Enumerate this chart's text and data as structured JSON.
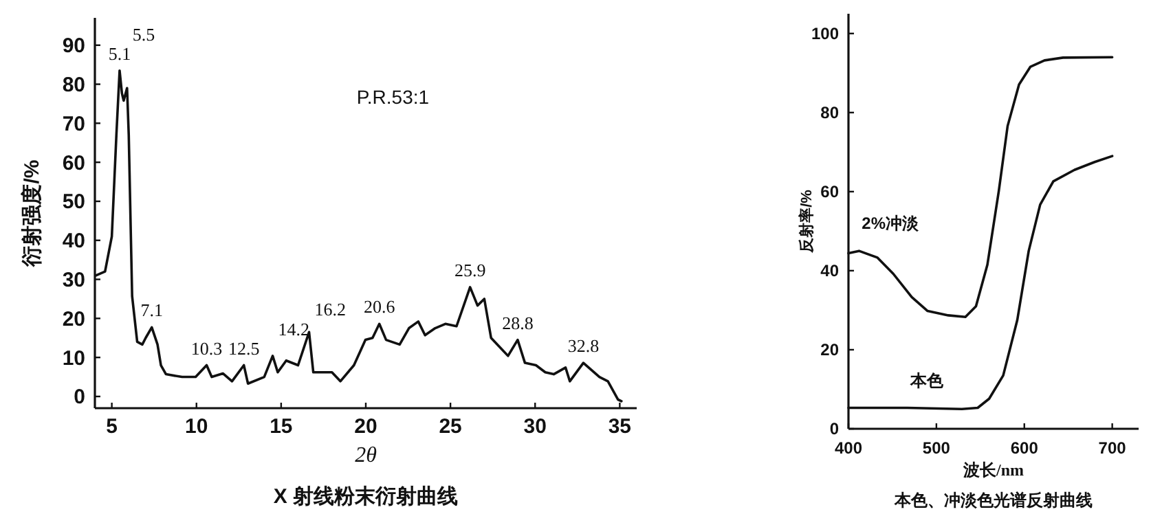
{
  "chart_data": [
    {
      "type": "line",
      "title": "X 射线粉末衍射曲线",
      "xlabel": "2θ",
      "ylabel": "衍射强度/%",
      "xlim": [
        4,
        36
      ],
      "ylim": [
        -3,
        97
      ],
      "xticks": [
        5,
        10,
        15,
        20,
        25,
        30,
        35
      ],
      "yticks": [
        0,
        10,
        20,
        30,
        40,
        50,
        60,
        70,
        80,
        90
      ],
      "marker": "none",
      "line_style": "solid",
      "annotations": [
        "P.R.53:1",
        {
          "text": "5.1",
          "x": 5.46,
          "y": 83.5
        },
        {
          "text": "5.5",
          "x": 5.9,
          "y": 79
        },
        {
          "text": "7.1",
          "x": 7.36,
          "y": 17.7
        },
        {
          "text": "10.3",
          "x": 10.6,
          "y": 8
        },
        {
          "text": "12.5",
          "x": 12.8,
          "y": 8
        },
        {
          "text": "14.2",
          "x": 14.5,
          "y": 10.4
        },
        {
          "text": "16.2",
          "x": 16.65,
          "y": 16.5
        },
        {
          "text": "20.6",
          "x": 20.8,
          "y": 18.6
        },
        {
          "text": "25.9",
          "x": 26.16,
          "y": 28
        },
        {
          "text": "28.8",
          "x": 28.97,
          "y": 14.5
        },
        {
          "text": "32.8",
          "x": 32.85,
          "y": 8.6
        }
      ],
      "series": [
        {
          "color": "#111111",
          "x": [
            4.06,
            4.6,
            5.0,
            5.27,
            5.46,
            5.6,
            5.7,
            5.9,
            6.0,
            6.2,
            6.5,
            6.8,
            7.0,
            7.36,
            7.7,
            7.9,
            8.2,
            9.15,
            9.95,
            10.6,
            10.9,
            11.56,
            12.1,
            12.8,
            13.04,
            14.0,
            14.5,
            14.8,
            15.3,
            16.0,
            16.65,
            16.9,
            18.0,
            18.5,
            19.3,
            19.98,
            20.4,
            20.8,
            21.2,
            22.0,
            22.55,
            23.1,
            23.5,
            24.1,
            24.7,
            25.36,
            26.16,
            26.6,
            27.0,
            27.4,
            28.4,
            28.97,
            29.4,
            30.05,
            30.6,
            31.1,
            31.8,
            32.05,
            32.85,
            33.8,
            34.3,
            34.9,
            35.1
          ],
          "values": [
            31,
            32,
            41,
            67,
            83.5,
            77.6,
            75.8,
            79,
            67,
            25.7,
            14,
            13.3,
            15,
            17.7,
            13.3,
            8,
            5.7,
            5,
            5,
            8,
            5,
            5.9,
            3.9,
            8,
            3.3,
            5,
            10.4,
            6.2,
            9.2,
            8,
            16.5,
            6.2,
            6.2,
            3.9,
            8,
            14.5,
            15,
            18.6,
            14.5,
            13.3,
            17.5,
            19.2,
            15.7,
            17.5,
            18.6,
            18,
            28,
            23.3,
            25,
            15,
            10.4,
            14.5,
            8.6,
            8,
            6.2,
            5.7,
            7.4,
            3.9,
            8.6,
            5,
            3.9,
            -0.8,
            -1.2
          ]
        }
      ]
    },
    {
      "type": "line",
      "title": "本色、冲淡色光谱反射曲线",
      "xlabel": "波长/nm",
      "ylabel": "反射率/%",
      "xlim": [
        400,
        730
      ],
      "ylim": [
        0,
        105
      ],
      "xticks": [
        400,
        500,
        600,
        700
      ],
      "yticks": [
        0,
        20,
        40,
        60,
        80,
        100
      ],
      "marker": "none",
      "line_style": "solid",
      "series": [
        {
          "name": "2%冲淡",
          "color": "#111111",
          "x": [
            400,
            412,
            433,
            451,
            472,
            490,
            513.5,
            533,
            545,
            558,
            571,
            581,
            594,
            607,
            623,
            644,
            700
          ],
          "values": [
            44.4,
            45,
            43.3,
            39.2,
            33.3,
            29.8,
            28.7,
            28.3,
            31,
            41.5,
            60.2,
            76.6,
            87.1,
            91.6,
            93.2,
            93.9,
            94
          ]
        },
        {
          "name": "本色",
          "color": "#111111",
          "x": [
            400,
            467,
            529,
            547,
            560,
            576,
            592,
            605,
            618,
            633,
            657,
            680,
            700
          ],
          "values": [
            5.3,
            5.3,
            5,
            5.3,
            7.6,
            13.5,
            27.5,
            45,
            56.7,
            62.6,
            65.5,
            67.5,
            69
          ]
        }
      ]
    }
  ]
}
